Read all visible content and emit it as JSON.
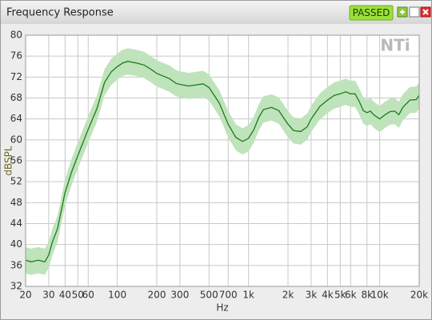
{
  "window": {
    "title": "Frequency Response",
    "status": "PASSED",
    "logo": "NTi"
  },
  "chart_data": {
    "type": "line",
    "xlabel": "Hz",
    "ylabel": "dBSPL",
    "xscale": "log",
    "grid": true,
    "xlim": [
      20,
      20000
    ],
    "ylim": [
      32,
      80
    ],
    "xticks": [
      20,
      30,
      40,
      50,
      60,
      100,
      200,
      300,
      500,
      700,
      {
        "value": 1000,
        "label": "1k"
      },
      {
        "value": 2000,
        "label": "2k"
      },
      {
        "value": 3000,
        "label": "3k"
      },
      {
        "value": 4000,
        "label": "4k"
      },
      {
        "value": 5000,
        "label": "5k"
      },
      {
        "value": 6000,
        "label": "6k"
      },
      {
        "value": 8000,
        "label": "8k"
      },
      {
        "value": 10000,
        "label": "10k"
      },
      {
        "value": 20000,
        "label": "20k"
      }
    ],
    "yticks": [
      32,
      36,
      40,
      44,
      48,
      52,
      56,
      60,
      64,
      68,
      72,
      76,
      80
    ],
    "x": [
      20,
      22,
      25,
      28,
      30,
      32,
      35,
      40,
      45,
      50,
      60,
      70,
      80,
      90,
      100,
      110,
      120,
      140,
      160,
      180,
      200,
      250,
      280,
      300,
      350,
      400,
      450,
      500,
      600,
      700,
      800,
      900,
      1000,
      1100,
      1200,
      1300,
      1500,
      1700,
      2000,
      2200,
      2500,
      2800,
      3000,
      3500,
      4000,
      4500,
      5000,
      5500,
      6000,
      6500,
      7000,
      7500,
      8000,
      8500,
      9000,
      10000,
      11000,
      12000,
      13000,
      14000,
      15000,
      17000,
      19000,
      20000
    ],
    "series": [
      {
        "color": "#1e7a1e",
        "values": [
          37,
          36.7,
          37,
          36.7,
          38,
          40.5,
          43,
          50,
          54,
          57,
          62,
          66,
          71,
          73,
          74,
          74.7,
          75,
          74.7,
          74.3,
          73.5,
          72.7,
          71.7,
          70.8,
          70.6,
          70.3,
          70.5,
          70.7,
          70,
          67,
          63,
          60.5,
          59.7,
          60.3,
          62,
          64.3,
          65.8,
          66.2,
          65.6,
          63,
          61.8,
          61.6,
          62.5,
          64,
          66.4,
          67.6,
          68.5,
          68.8,
          69.2,
          68.8,
          68.8,
          67.3,
          65.6,
          65.2,
          65.5,
          64.8,
          64,
          64.8,
          65.4,
          65.5,
          64.8,
          66.2,
          67.6,
          67.7,
          68.5
        ]
      }
    ],
    "band": {
      "color": "#bfe3bb",
      "upper": [
        39.5,
        39.2,
        39.5,
        39.2,
        40.5,
        43,
        45.5,
        52.5,
        56.5,
        59.5,
        64.5,
        68.5,
        73.5,
        75.5,
        76.5,
        77.2,
        77.5,
        77.2,
        76.8,
        76,
        75.2,
        74.2,
        73.3,
        73.1,
        72.8,
        73,
        73.2,
        72.5,
        69.5,
        65.5,
        63,
        62.2,
        62.8,
        64.5,
        66.8,
        68.3,
        68.7,
        68.1,
        65.5,
        64.3,
        64.1,
        65,
        66.5,
        68.9,
        70.1,
        71,
        71.3,
        71.7,
        71.3,
        71.3,
        69.8,
        68.1,
        67.7,
        68,
        67.3,
        66.5,
        67.3,
        67.9,
        68,
        67.3,
        68.7,
        70.1,
        70.2,
        71
      ],
      "lower": [
        34.5,
        34.2,
        34.5,
        34.2,
        35.5,
        38,
        40.5,
        47.5,
        51.5,
        54.5,
        59.5,
        63.5,
        68.5,
        70.5,
        71.5,
        72.2,
        72.5,
        72.2,
        71.8,
        71,
        70.2,
        69.2,
        68.3,
        68.1,
        67.8,
        68,
        68.2,
        67.5,
        64.5,
        60.5,
        58,
        57.2,
        57.8,
        59.5,
        61.8,
        63.3,
        63.7,
        63.1,
        60.5,
        59.3,
        59.1,
        60,
        61.5,
        63.9,
        65.1,
        66,
        66.3,
        66.7,
        66.3,
        66.3,
        64.8,
        63.1,
        62.7,
        63,
        62.3,
        61.5,
        62.3,
        62.9,
        63,
        62.3,
        63.7,
        65.1,
        65.2,
        66
      ]
    }
  }
}
